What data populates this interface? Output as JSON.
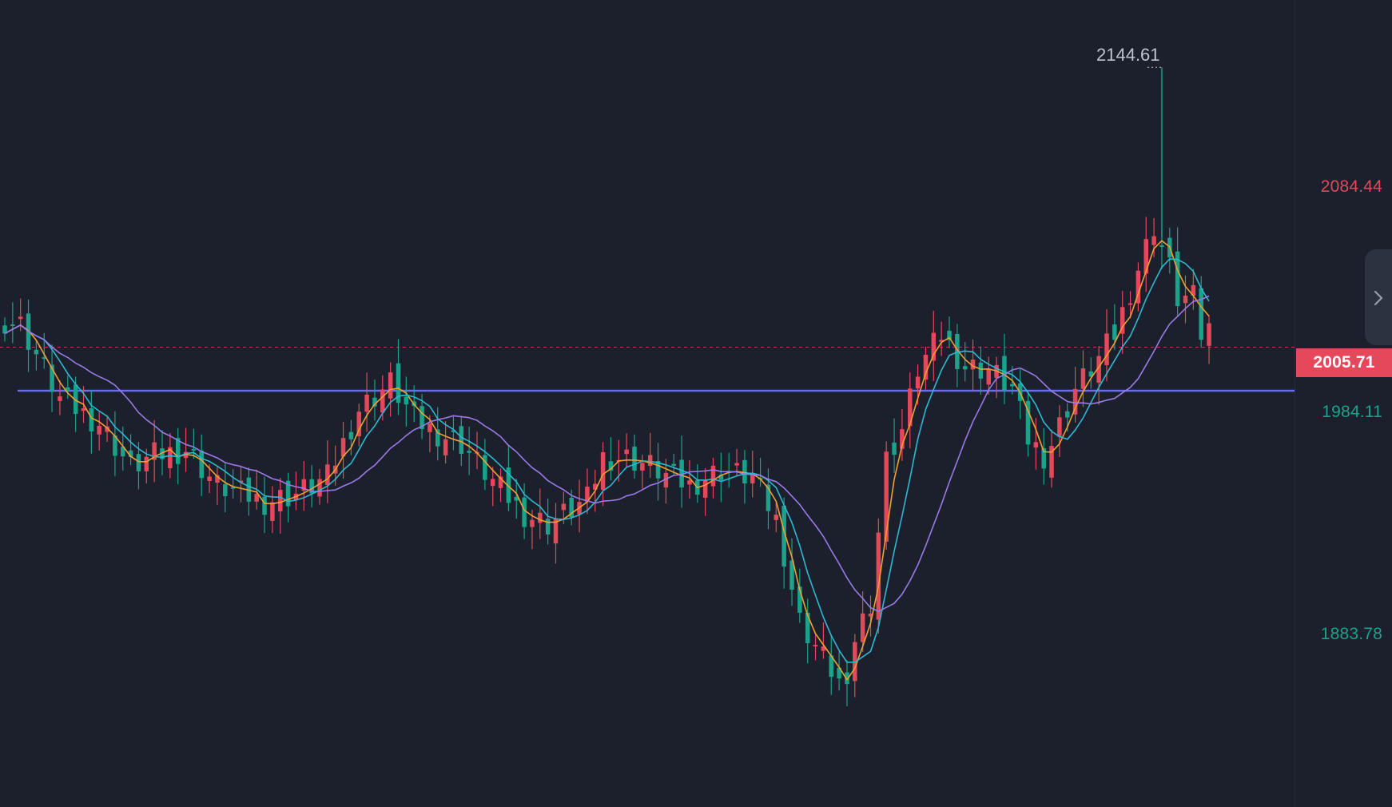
{
  "chart_data": {
    "type": "candlestick",
    "y_axis": {
      "ticks": [
        "2084.44",
        "1984.11",
        "1883.78"
      ],
      "range": [
        1805,
        2165
      ]
    },
    "peak_annotation": "2144.61",
    "current_price": {
      "label": "2005.71",
      "value": 2005.71
    },
    "horizontal_line": {
      "label": "1984.11",
      "value": 1984.11
    },
    "colors": {
      "background": "#1b202c",
      "up": "#e5485a",
      "down": "#1aa38a",
      "ma_fast": "#f0a030",
      "ma_mid": "#2fb8d4",
      "ma_slow": "#9a7ae8",
      "horizontal_line": "#6a6cf0",
      "upper_label": "#e5485a",
      "lower_label": "#1aa38a",
      "peak_label": "#bfc4cc"
    },
    "price_path": [
      [
        0,
        2019
      ],
      [
        2,
        2017
      ],
      [
        7,
        1980
      ],
      [
        12,
        1968
      ],
      [
        16,
        1946
      ],
      [
        19,
        1952
      ],
      [
        23,
        1955
      ],
      [
        27,
        1937
      ],
      [
        33,
        1929
      ],
      [
        37,
        1933
      ],
      [
        41,
        1941
      ],
      [
        45,
        1975
      ],
      [
        49,
        1988
      ],
      [
        52,
        1970
      ],
      [
        55,
        1963
      ],
      [
        58,
        1958
      ],
      [
        62,
        1939
      ],
      [
        66,
        1923
      ],
      [
        69,
        1918
      ],
      [
        74,
        1930
      ],
      [
        76,
        1951
      ],
      [
        79,
        1951
      ],
      [
        82,
        1947
      ],
      [
        84,
        1942
      ],
      [
        87,
        1937
      ],
      [
        91,
        1945
      ],
      [
        95,
        1941
      ],
      [
        98,
        1920
      ],
      [
        101,
        1870
      ],
      [
        104,
        1852
      ],
      [
        106,
        1840
      ],
      [
        107,
        1832
      ],
      [
        108,
        1862
      ],
      [
        110,
        1880
      ],
      [
        112,
        1950
      ],
      [
        114,
        1965
      ],
      [
        116,
        1995
      ],
      [
        119,
        2012
      ],
      [
        122,
        1996
      ],
      [
        125,
        1995
      ],
      [
        128,
        1985
      ],
      [
        130,
        1960
      ],
      [
        132,
        1952
      ],
      [
        133,
        1958
      ],
      [
        136,
        1985
      ],
      [
        139,
        2000
      ],
      [
        141,
        2012
      ],
      [
        144,
        2045
      ],
      [
        146,
        2066
      ],
      [
        148,
        2045
      ],
      [
        149,
        2030
      ],
      [
        151,
        2030
      ],
      [
        152,
        2012
      ],
      [
        153,
        2015
      ]
    ],
    "ma_periods": [
      3,
      6,
      15
    ]
  },
  "icons": {
    "collapse": "chevron-right-icon"
  }
}
